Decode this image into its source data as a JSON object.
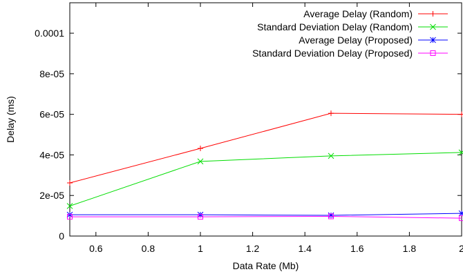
{
  "chart_data": {
    "type": "line",
    "xlabel": "Data Rate (Mb)",
    "ylabel": "Delay (ms)",
    "xlim": [
      0.5,
      2.0
    ],
    "ylim": [
      0,
      0.000115
    ],
    "xticks": [
      0.6,
      0.8,
      1.0,
      1.2,
      1.4,
      1.6,
      1.8,
      2.0
    ],
    "xtick_labels": [
      "0.6",
      "0.8",
      "1",
      "1.2",
      "1.4",
      "1.6",
      "1.8",
      "2"
    ],
    "yticks": [
      0,
      2e-05,
      4e-05,
      6e-05,
      8e-05,
      0.0001
    ],
    "ytick_labels": [
      "0",
      "2e-05",
      "4e-05",
      "6e-05",
      "8e-05",
      "0.0001"
    ],
    "grid": false,
    "legend_position": "top-right",
    "x": [
      0.5,
      1.0,
      1.5,
      2.0
    ],
    "series": [
      {
        "name": "Average Delay (Random)",
        "color": "#ff0000",
        "marker": "plus",
        "values": [
          2.62e-05,
          4.32e-05,
          6.05e-05,
          6e-05
        ]
      },
      {
        "name": "Standard Deviation Delay (Random)",
        "color": "#00dd00",
        "marker": "cross",
        "values": [
          1.48e-05,
          3.68e-05,
          3.95e-05,
          4.12e-05
        ]
      },
      {
        "name": "Average Delay (Proposed)",
        "color": "#0000ff",
        "marker": "star",
        "values": [
          1.05e-05,
          1.05e-05,
          1.02e-05,
          1.12e-05
        ]
      },
      {
        "name": "Standard Deviation Delay (Proposed)",
        "color": "#ff00ff",
        "marker": "square",
        "values": [
          9.5e-06,
          9.5e-06,
          9.7e-06,
          8.8e-06
        ]
      }
    ]
  }
}
